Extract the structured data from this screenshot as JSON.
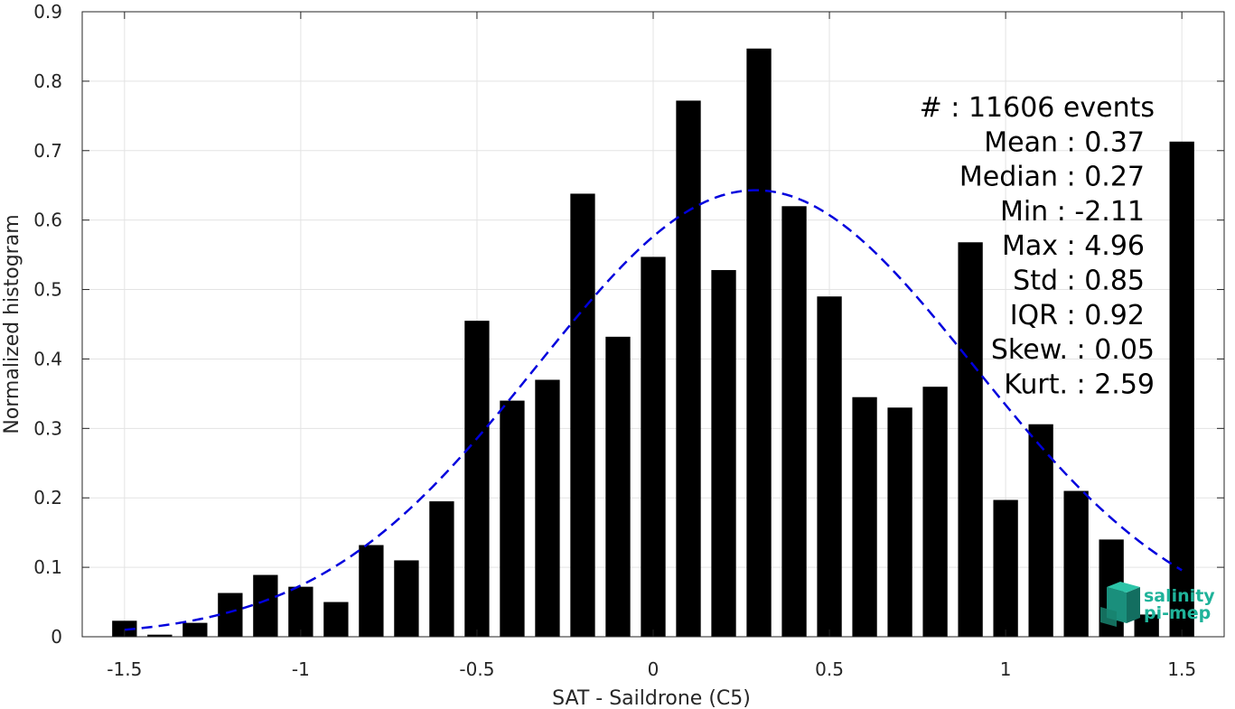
{
  "chart_data": {
    "type": "bar",
    "xlabel": "SAT - Saildrone (C5)",
    "ylabel": "Normalized histogram",
    "xlim": [
      -1.62,
      1.62
    ],
    "ylim": [
      0,
      0.9
    ],
    "x_ticks": [
      -1.5,
      -1,
      -0.5,
      0,
      0.5,
      1,
      1.5
    ],
    "x_tick_labels": [
      "-1.5",
      "-1",
      "-0.5",
      "0",
      "0.5",
      "1",
      "1.5"
    ],
    "y_ticks": [
      0,
      0.1,
      0.2,
      0.3,
      0.4,
      0.5,
      0.6,
      0.7,
      0.8,
      0.9
    ],
    "y_tick_labels": [
      "0",
      "0.1",
      "0.2",
      "0.3",
      "0.4",
      "0.5",
      "0.6",
      "0.7",
      "0.8",
      "0.9"
    ],
    "grid": true,
    "bar_width": 0.07,
    "bar_color": "#000000",
    "x": [
      -1.5,
      -1.4,
      -1.3,
      -1.2,
      -1.1,
      -1.0,
      -0.9,
      -0.8,
      -0.7,
      -0.6,
      -0.5,
      -0.4,
      -0.3,
      -0.2,
      -0.1,
      0.0,
      0.1,
      0.2,
      0.3,
      0.4,
      0.5,
      0.6,
      0.7,
      0.8,
      0.9,
      1.0,
      1.1,
      1.2,
      1.3,
      1.4,
      1.5
    ],
    "values": [
      0.023,
      0.003,
      0.02,
      0.063,
      0.089,
      0.072,
      0.05,
      0.132,
      0.11,
      0.195,
      0.455,
      0.34,
      0.37,
      0.638,
      0.432,
      0.547,
      0.772,
      0.528,
      0.847,
      0.62,
      0.49,
      0.345,
      0.33,
      0.36,
      0.568,
      0.197,
      0.306,
      0.21,
      0.14,
      0.032,
      0.713
    ],
    "fit_curve": {
      "style": "dashed",
      "color": "#0000dd",
      "mean": 0.29,
      "std": 0.62,
      "peak": 0.643,
      "x_range": [
        -1.5,
        1.5
      ]
    },
    "stats": [
      "#  : 11606 events",
      "Mean : 0.37",
      "Median : 0.27",
      "Min : -2.11",
      "Max : 4.96",
      "Std : 0.85",
      "IQR : 0.92",
      "Skew. : 0.05",
      "Kurt. : 2.59"
    ]
  },
  "logo": {
    "line1": "salinity",
    "line2": "pi-mep",
    "color": "#1fb39a"
  }
}
